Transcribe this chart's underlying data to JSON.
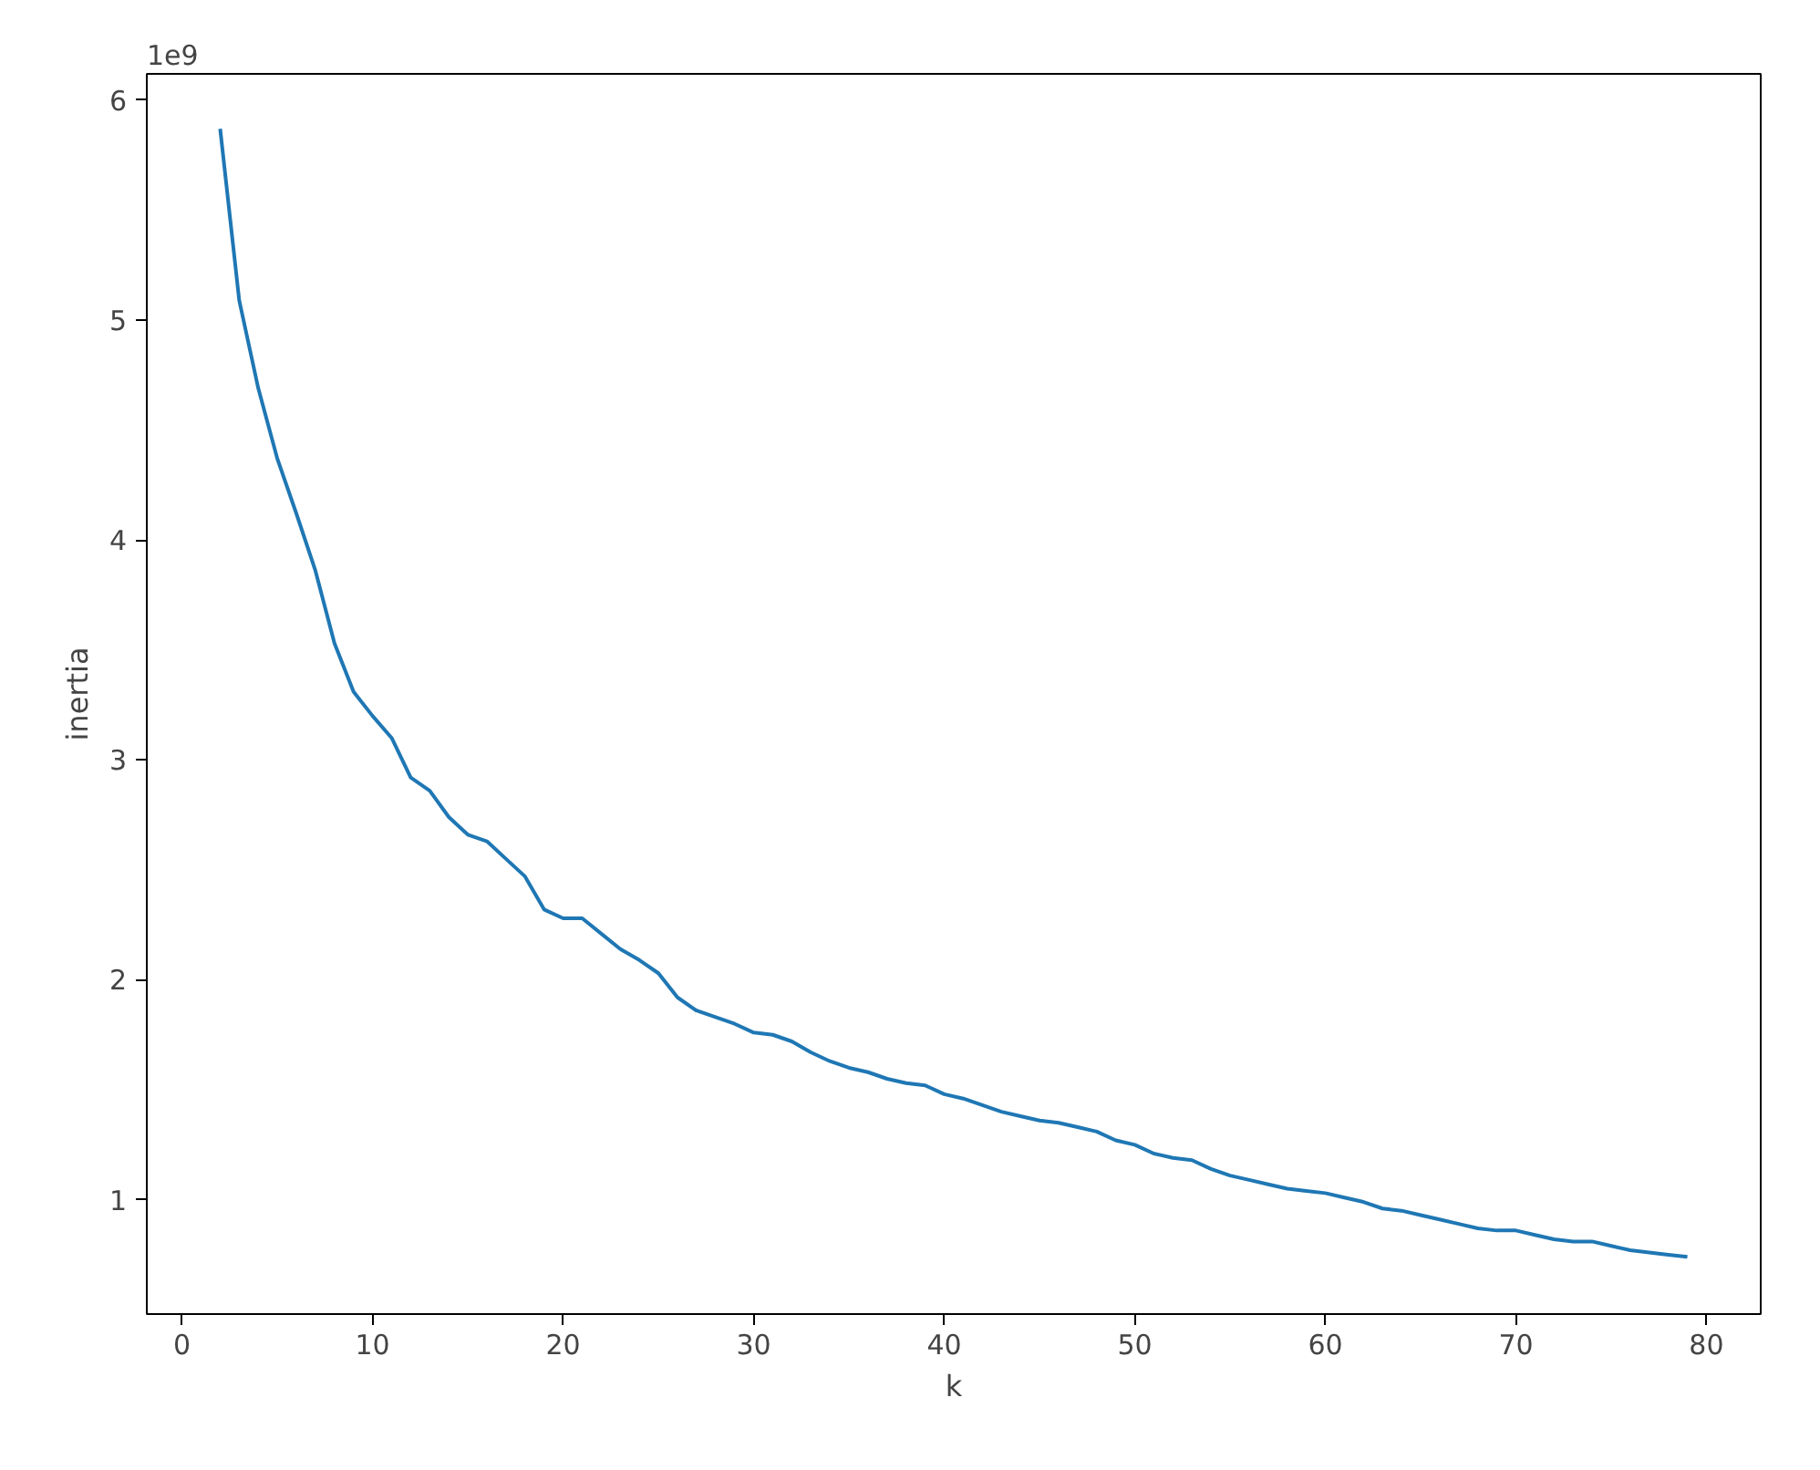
{
  "chart_data": {
    "type": "line",
    "xlabel": "k",
    "ylabel": "inertia",
    "annotations": [
      "1e9"
    ],
    "x": [
      2,
      3,
      4,
      5,
      6,
      7,
      8,
      9,
      10,
      11,
      12,
      13,
      14,
      15,
      16,
      17,
      18,
      19,
      20,
      21,
      22,
      23,
      24,
      25,
      26,
      27,
      28,
      29,
      30,
      31,
      32,
      33,
      34,
      35,
      36,
      37,
      38,
      39,
      40,
      41,
      42,
      43,
      44,
      45,
      46,
      47,
      48,
      49,
      50,
      51,
      52,
      53,
      54,
      55,
      56,
      57,
      58,
      59,
      60,
      61,
      62,
      63,
      64,
      65,
      66,
      67,
      68,
      69,
      70,
      71,
      72,
      73,
      74,
      75,
      76,
      77,
      78,
      79
    ],
    "series": [
      {
        "color": "#1f77b4",
        "values": [
          5.87,
          5.09,
          4.69,
          4.37,
          4.12,
          3.86,
          3.53,
          3.31,
          3.2,
          3.1,
          2.92,
          2.86,
          2.74,
          2.66,
          2.63,
          2.55,
          2.47,
          2.32,
          2.28,
          2.28,
          2.21,
          2.14,
          2.09,
          2.03,
          1.92,
          1.86,
          1.83,
          1.8,
          1.76,
          1.75,
          1.72,
          1.67,
          1.63,
          1.6,
          1.58,
          1.55,
          1.53,
          1.52,
          1.48,
          1.46,
          1.43,
          1.4,
          1.38,
          1.36,
          1.35,
          1.33,
          1.31,
          1.27,
          1.25,
          1.21,
          1.19,
          1.18,
          1.14,
          1.11,
          1.09,
          1.07,
          1.05,
          1.04,
          1.03,
          1.01,
          0.99,
          0.96,
          0.95,
          0.93,
          0.91,
          0.89,
          0.87,
          0.86,
          0.86,
          0.84,
          0.82,
          0.81,
          0.81,
          0.79,
          0.77,
          0.76,
          0.75,
          0.74
        ]
      }
    ],
    "xlim": [
      -1.85,
      82.85
    ],
    "ylim": [
      0.48,
      6.12
    ],
    "xticks": [
      0,
      10,
      20,
      30,
      40,
      50,
      60,
      70,
      80
    ],
    "yticks": [
      1,
      2,
      3,
      4,
      5,
      6
    ],
    "grid": false,
    "marker": "none",
    "line_style": "solid"
  }
}
